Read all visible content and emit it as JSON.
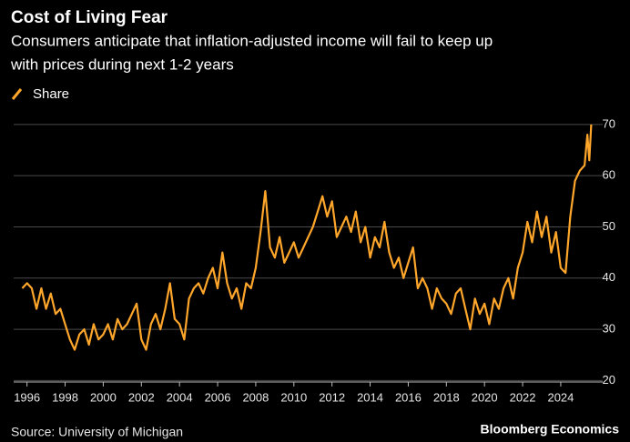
{
  "chart_data": {
    "type": "line",
    "title": "Cost of Living Fear",
    "subtitle": [
      "Consumers anticipate that inflation-adjusted income will fail to keep up",
      "with prices during next 1-2 years"
    ],
    "source": "Source: University of Michigan",
    "brand": "Bloomberg Economics",
    "x": [
      1995.75,
      1996,
      1996.25,
      1996.5,
      1996.75,
      1997,
      1997.25,
      1997.5,
      1997.75,
      1998,
      1998.25,
      1998.5,
      1998.75,
      1999,
      1999.25,
      1999.5,
      1999.75,
      2000,
      2000.25,
      2000.5,
      2000.75,
      2001,
      2001.25,
      2001.5,
      2001.75,
      2002,
      2002.25,
      2002.5,
      2002.75,
      2003,
      2003.25,
      2003.5,
      2003.75,
      2004,
      2004.25,
      2004.5,
      2004.75,
      2005,
      2005.25,
      2005.5,
      2005.75,
      2006,
      2006.25,
      2006.5,
      2006.75,
      2007,
      2007.25,
      2007.5,
      2007.75,
      2008,
      2008.25,
      2008.5,
      2008.75,
      2009,
      2009.25,
      2009.5,
      2009.75,
      2010,
      2010.25,
      2010.5,
      2010.75,
      2011,
      2011.25,
      2011.5,
      2011.75,
      2012,
      2012.25,
      2012.5,
      2012.75,
      2013,
      2013.25,
      2013.5,
      2013.75,
      2014,
      2014.25,
      2014.5,
      2014.75,
      2015,
      2015.25,
      2015.5,
      2015.75,
      2016,
      2016.25,
      2016.5,
      2016.75,
      2017,
      2017.25,
      2017.5,
      2017.75,
      2018,
      2018.25,
      2018.5,
      2018.75,
      2019,
      2019.25,
      2019.5,
      2019.75,
      2020,
      2020.25,
      2020.5,
      2020.75,
      2021,
      2021.25,
      2021.5,
      2021.75,
      2022,
      2022.25,
      2022.5,
      2022.75,
      2023,
      2023.25,
      2023.5,
      2023.75,
      2024,
      2024.25,
      2024.5,
      2024.75,
      2025,
      2025.25,
      2025.4,
      2025.5,
      2025.6
    ],
    "series": [
      {
        "name": "Share",
        "color": "#ffa62b",
        "values": [
          38,
          39,
          38,
          34,
          38,
          34,
          37,
          33,
          34,
          31,
          28,
          26,
          29,
          30,
          27,
          31,
          28,
          29,
          31,
          28,
          32,
          30,
          31,
          33,
          35,
          28,
          26,
          31,
          33,
          30,
          34,
          39,
          32,
          31,
          28,
          36,
          38,
          39,
          37,
          40,
          42,
          38,
          45,
          39,
          36,
          38,
          34,
          39,
          38,
          42,
          49,
          57,
          46,
          44,
          48,
          43,
          45,
          47,
          44,
          46,
          48,
          50,
          53,
          56,
          52,
          55,
          48,
          50,
          52,
          49,
          53,
          47,
          50,
          44,
          48,
          46,
          51,
          45,
          42,
          44,
          40,
          43,
          46,
          38,
          40,
          38,
          34,
          38,
          36,
          35,
          33,
          37,
          38,
          34,
          30,
          36,
          33,
          35,
          31,
          36,
          34,
          38,
          40,
          36,
          42,
          45,
          51,
          47,
          53,
          48,
          52,
          45,
          49,
          42,
          41,
          52,
          59,
          61,
          62,
          68,
          63,
          70
        ]
      }
    ],
    "xlim": [
      1995.3,
      2026.2
    ],
    "xticks": [
      1996,
      1998,
      2000,
      2002,
      2004,
      2006,
      2008,
      2010,
      2012,
      2014,
      2016,
      2018,
      2020,
      2022,
      2024
    ],
    "ylim": [
      19,
      73
    ],
    "yticks": [
      20,
      30,
      40,
      50,
      60,
      70
    ],
    "grid": true
  }
}
